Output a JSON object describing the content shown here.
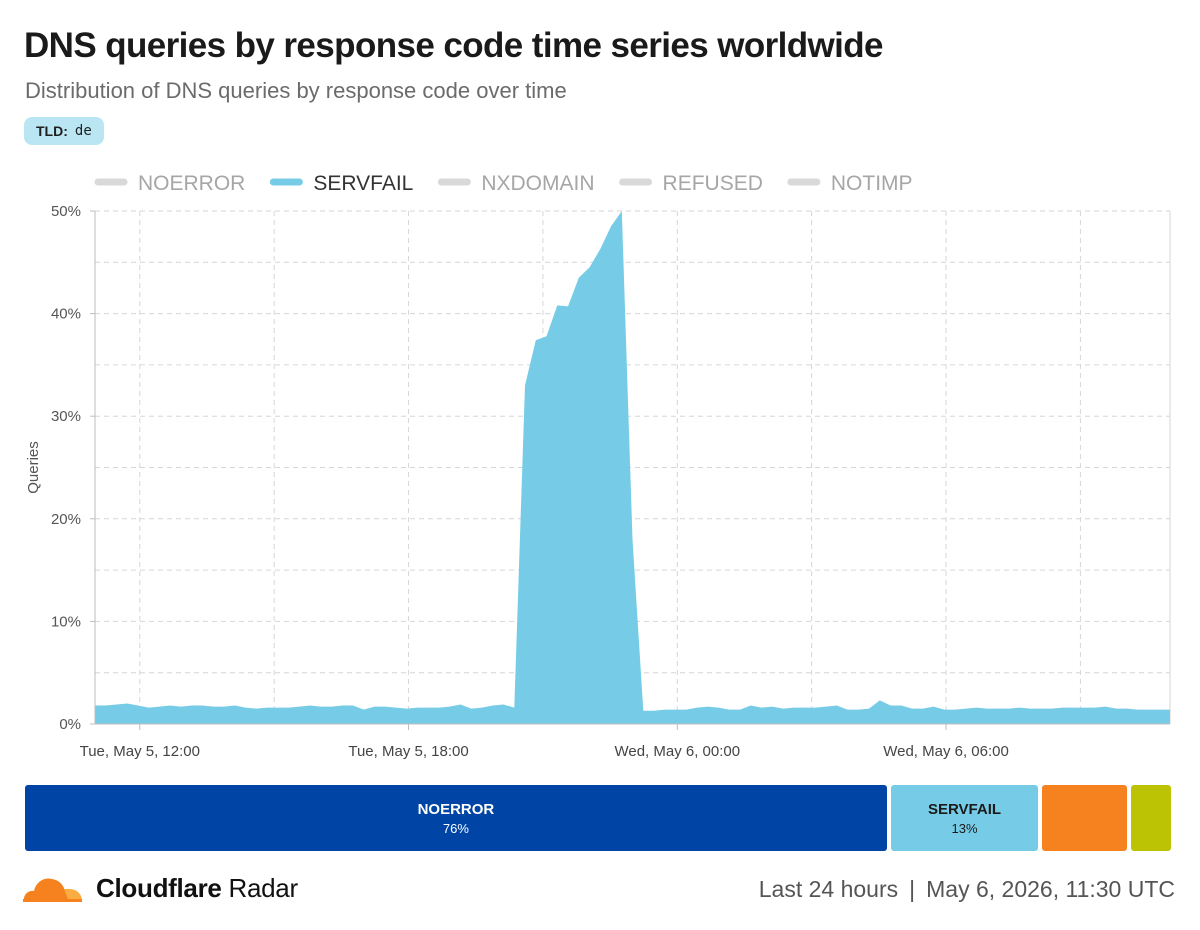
{
  "header": {
    "title": "DNS queries by response code time series worldwide",
    "subtitle": "Distribution of DNS queries by response code over time",
    "filter": {
      "key": "TLD:",
      "value": "de"
    }
  },
  "chart_data": {
    "type": "area",
    "ylabel": "Queries",
    "ylim": [
      0,
      50
    ],
    "yticks": [
      "0%",
      "10%",
      "20%",
      "30%",
      "40%",
      "50%"
    ],
    "grid": true,
    "legend_position": "top",
    "x_start": "May 5, 2026, 11:00 UTC",
    "x_end": "May 6, 2026, 11:00 UTC",
    "xtick_labels": [
      "Tue, May 5, 12:00",
      "Tue, May 5, 18:00",
      "Wed, May 6, 00:00",
      "Wed, May 6, 06:00"
    ],
    "legend": [
      {
        "name": "NOERROR",
        "active": false,
        "color": "#d9d9d9"
      },
      {
        "name": "SERVFAIL",
        "active": true,
        "color": "#76cce6"
      },
      {
        "name": "NXDOMAIN",
        "active": false,
        "color": "#d9d9d9"
      },
      {
        "name": "REFUSED",
        "active": false,
        "color": "#d9d9d9"
      },
      {
        "name": "NOTIMP",
        "active": false,
        "color": "#d9d9d9"
      }
    ],
    "series": [
      {
        "name": "SERVFAIL",
        "color": "#76cce6",
        "values": [
          1.8,
          1.8,
          1.9,
          2.0,
          1.8,
          1.6,
          1.7,
          1.8,
          1.7,
          1.8,
          1.8,
          1.7,
          1.7,
          1.8,
          1.6,
          1.5,
          1.6,
          1.6,
          1.6,
          1.7,
          1.8,
          1.7,
          1.7,
          1.8,
          1.8,
          1.4,
          1.7,
          1.7,
          1.6,
          1.5,
          1.6,
          1.6,
          1.6,
          1.7,
          1.9,
          1.5,
          1.6,
          1.8,
          1.9,
          1.6,
          33.0,
          37.4,
          37.8,
          40.8,
          40.7,
          43.5,
          44.5,
          46.3,
          48.5,
          50.0,
          18.0,
          1.3,
          1.3,
          1.4,
          1.4,
          1.4,
          1.6,
          1.7,
          1.6,
          1.4,
          1.4,
          1.8,
          1.6,
          1.7,
          1.5,
          1.6,
          1.6,
          1.6,
          1.7,
          1.8,
          1.4,
          1.4,
          1.5,
          2.3,
          1.8,
          1.8,
          1.5,
          1.5,
          1.7,
          1.4,
          1.4,
          1.5,
          1.6,
          1.5,
          1.5,
          1.5,
          1.6,
          1.5,
          1.5,
          1.5,
          1.6,
          1.6,
          1.6,
          1.6,
          1.7,
          1.5,
          1.5,
          1.4,
          1.4,
          1.4,
          1.4
        ]
      }
    ]
  },
  "breakdown": [
    {
      "name": "NOERROR",
      "percent": 76,
      "label": "NOERROR",
      "value_text": "76%",
      "color": "#0045a6",
      "text_color": "#ffffff"
    },
    {
      "name": "SERVFAIL",
      "percent": 13,
      "label": "SERVFAIL",
      "value_text": "13%",
      "color": "#76cce6",
      "text_color": "#1a1a1a"
    },
    {
      "name": "NXDOMAIN",
      "percent": 7.5,
      "color": "#f6821f"
    },
    {
      "name": "REFUSED",
      "percent": 3.5,
      "color": "#bcc304"
    }
  ],
  "footer": {
    "brand_bold": "Cloudflare",
    "brand_light": " Radar",
    "range": "Last 24 hours",
    "separator": "|",
    "timestamp": "May 6, 2026, 11:30 UTC",
    "brand_colors": [
      "#f6821f",
      "#fbad41"
    ]
  }
}
